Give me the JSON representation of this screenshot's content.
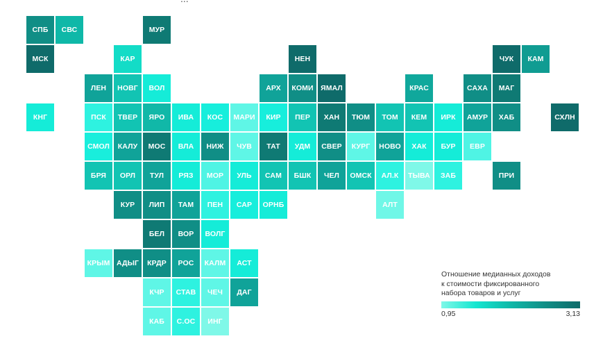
{
  "map": {
    "title_fragment": "...",
    "legend": {
      "title_line1": "Отношение медианных доходов",
      "title_line2": "к стоимости фиксированного",
      "title_line3": "набора товаров и услуг",
      "min_label": "0,95",
      "max_label": "3,13",
      "color_min": "#7ff8e8",
      "color_max": "#0f6b6a"
    },
    "regions": [
      {
        "label": "СПБ",
        "col": 0,
        "row": 0,
        "color": "#108e86"
      },
      {
        "label": "СВС",
        "col": 1,
        "row": 0,
        "color": "#0fb8a8"
      },
      {
        "label": "МУР",
        "col": 4,
        "row": 0,
        "color": "#0f7a74"
      },
      {
        "label": "МСК",
        "col": 0,
        "row": 1,
        "color": "#0f6b6a"
      },
      {
        "label": "КАР",
        "col": 3,
        "row": 1,
        "color": "#13dcc7"
      },
      {
        "label": "НЕН",
        "col": 9,
        "row": 1,
        "color": "#0f6b6a"
      },
      {
        "label": "ЧУК",
        "col": 16,
        "row": 1,
        "color": "#0f6b6a"
      },
      {
        "label": "КАМ",
        "col": 17,
        "row": 1,
        "color": "#109c92"
      },
      {
        "label": "ЛЕН",
        "col": 2,
        "row": 2,
        "color": "#10a399"
      },
      {
        "label": "НОВГ",
        "col": 3,
        "row": 2,
        "color": "#12c4b3"
      },
      {
        "label": "ВОЛ",
        "col": 4,
        "row": 2,
        "color": "#15ecd8"
      },
      {
        "label": "АРХ",
        "col": 8,
        "row": 2,
        "color": "#10a399"
      },
      {
        "label": "КОМИ",
        "col": 9,
        "row": 2,
        "color": "#108e86"
      },
      {
        "label": "ЯМАЛ",
        "col": 10,
        "row": 2,
        "color": "#0f6b6a"
      },
      {
        "label": "КРАС",
        "col": 13,
        "row": 2,
        "color": "#10a89c"
      },
      {
        "label": "САХА",
        "col": 15,
        "row": 2,
        "color": "#108e86"
      },
      {
        "label": "МАГ",
        "col": 16,
        "row": 2,
        "color": "#0f7a74"
      },
      {
        "label": "КНГ",
        "col": 0,
        "row": 3,
        "color": "#15ecd8"
      },
      {
        "label": "ПСК",
        "col": 2,
        "row": 3,
        "color": "#2ef2e0"
      },
      {
        "label": "ТВЕР",
        "col": 3,
        "row": 3,
        "color": "#12c4b3"
      },
      {
        "label": "ЯРО",
        "col": 4,
        "row": 3,
        "color": "#11b8a8"
      },
      {
        "label": "ИВА",
        "col": 5,
        "row": 3,
        "color": "#15ecd8"
      },
      {
        "label": "КОС",
        "col": 6,
        "row": 3,
        "color": "#17eedc"
      },
      {
        "label": "МАРИ",
        "col": 7,
        "row": 3,
        "color": "#5ff6e6"
      },
      {
        "label": "КИР",
        "col": 8,
        "row": 3,
        "color": "#17eedc"
      },
      {
        "label": "ПЕР",
        "col": 9,
        "row": 3,
        "color": "#12c4b3"
      },
      {
        "label": "ХАН",
        "col": 10,
        "row": 3,
        "color": "#0f7a74"
      },
      {
        "label": "ТЮМ",
        "col": 11,
        "row": 3,
        "color": "#108e86"
      },
      {
        "label": "ТОМ",
        "col": 12,
        "row": 3,
        "color": "#12c4b3"
      },
      {
        "label": "КЕМ",
        "col": 13,
        "row": 3,
        "color": "#12c4b3"
      },
      {
        "label": "ИРК",
        "col": 14,
        "row": 3,
        "color": "#15ecd8"
      },
      {
        "label": "АМУР",
        "col": 15,
        "row": 3,
        "color": "#10a399"
      },
      {
        "label": "ХАБ",
        "col": 16,
        "row": 3,
        "color": "#108e86"
      },
      {
        "label": "СХЛН",
        "col": 18,
        "row": 3,
        "color": "#0f6b6a"
      },
      {
        "label": "СМОЛ",
        "col": 2,
        "row": 4,
        "color": "#19eedc"
      },
      {
        "label": "КАЛУ",
        "col": 3,
        "row": 4,
        "color": "#10a399"
      },
      {
        "label": "МОС",
        "col": 4,
        "row": 4,
        "color": "#0f7a74"
      },
      {
        "label": "ВЛА",
        "col": 5,
        "row": 4,
        "color": "#15ecd8"
      },
      {
        "label": "НИЖ",
        "col": 6,
        "row": 4,
        "color": "#108e86"
      },
      {
        "label": "ЧУВ",
        "col": 7,
        "row": 4,
        "color": "#5ff6e6"
      },
      {
        "label": "ТАТ",
        "col": 8,
        "row": 4,
        "color": "#0f7a74"
      },
      {
        "label": "УДМ",
        "col": 9,
        "row": 4,
        "color": "#15ecd8"
      },
      {
        "label": "СВЕР",
        "col": 10,
        "row": 4,
        "color": "#108e86"
      },
      {
        "label": "КУРГ",
        "col": 11,
        "row": 4,
        "color": "#5ff6e6"
      },
      {
        "label": "НОВО",
        "col": 12,
        "row": 4,
        "color": "#10a399"
      },
      {
        "label": "ХАК",
        "col": 13,
        "row": 4,
        "color": "#15ecd8"
      },
      {
        "label": "БУР",
        "col": 14,
        "row": 4,
        "color": "#15ecd8"
      },
      {
        "label": "ЕВР",
        "col": 15,
        "row": 4,
        "color": "#4ff4e4"
      },
      {
        "label": "БРЯ",
        "col": 2,
        "row": 5,
        "color": "#12c4b3"
      },
      {
        "label": "ОРЛ",
        "col": 3,
        "row": 5,
        "color": "#12c4b3"
      },
      {
        "label": "ТУЛ",
        "col": 4,
        "row": 5,
        "color": "#10a399"
      },
      {
        "label": "РЯЗ",
        "col": 5,
        "row": 5,
        "color": "#15ecd8"
      },
      {
        "label": "МОР",
        "col": 6,
        "row": 5,
        "color": "#4ff4e4"
      },
      {
        "label": "УЛЬ",
        "col": 7,
        "row": 5,
        "color": "#15ecd8"
      },
      {
        "label": "САМ",
        "col": 8,
        "row": 5,
        "color": "#12c4b3"
      },
      {
        "label": "БШК",
        "col": 9,
        "row": 5,
        "color": "#12c4b3"
      },
      {
        "label": "ЧЕЛ",
        "col": 10,
        "row": 5,
        "color": "#10a399"
      },
      {
        "label": "ОМСК",
        "col": 11,
        "row": 5,
        "color": "#12c4b3"
      },
      {
        "label": "АЛ.К",
        "col": 12,
        "row": 5,
        "color": "#2ef2e0"
      },
      {
        "label": "ТЫВА",
        "col": 13,
        "row": 5,
        "color": "#7ff8e8"
      },
      {
        "label": "ЗАБ",
        "col": 14,
        "row": 5,
        "color": "#2ef2e0"
      },
      {
        "label": "ПРИ",
        "col": 16,
        "row": 5,
        "color": "#108e86"
      },
      {
        "label": "КУР",
        "col": 3,
        "row": 6,
        "color": "#108e86"
      },
      {
        "label": "ЛИП",
        "col": 4,
        "row": 6,
        "color": "#108e86"
      },
      {
        "label": "ТАМ",
        "col": 5,
        "row": 6,
        "color": "#10a399"
      },
      {
        "label": "ПЕН",
        "col": 6,
        "row": 6,
        "color": "#2ef2e0"
      },
      {
        "label": "САР",
        "col": 7,
        "row": 6,
        "color": "#17eedc"
      },
      {
        "label": "ОРНБ",
        "col": 8,
        "row": 6,
        "color": "#15ecd8"
      },
      {
        "label": "АЛТ",
        "col": 12,
        "row": 6,
        "color": "#6ff7e7"
      },
      {
        "label": "БЕЛ",
        "col": 4,
        "row": 7,
        "color": "#0f7a74"
      },
      {
        "label": "ВОР",
        "col": 5,
        "row": 7,
        "color": "#108e86"
      },
      {
        "label": "ВОЛГ",
        "col": 6,
        "row": 7,
        "color": "#15ecd8"
      },
      {
        "label": "КРЫМ",
        "col": 2,
        "row": 8,
        "color": "#5ff6e6"
      },
      {
        "label": "АДЫГ",
        "col": 3,
        "row": 8,
        "color": "#108e86"
      },
      {
        "label": "КРДР",
        "col": 4,
        "row": 8,
        "color": "#108e86"
      },
      {
        "label": "РОС",
        "col": 5,
        "row": 8,
        "color": "#10a399"
      },
      {
        "label": "КАЛМ",
        "col": 6,
        "row": 8,
        "color": "#5ff6e6"
      },
      {
        "label": "АСТ",
        "col": 7,
        "row": 8,
        "color": "#15ecd8"
      },
      {
        "label": "КЧР",
        "col": 4,
        "row": 9,
        "color": "#5ff6e6"
      },
      {
        "label": "СТАВ",
        "col": 5,
        "row": 9,
        "color": "#2ef2e0"
      },
      {
        "label": "ЧЕЧ",
        "col": 6,
        "row": 9,
        "color": "#5ff6e6"
      },
      {
        "label": "ДАГ",
        "col": 7,
        "row": 9,
        "color": "#10a399"
      },
      {
        "label": "КАБ",
        "col": 4,
        "row": 10,
        "color": "#5ff6e6"
      },
      {
        "label": "С.ОС",
        "col": 5,
        "row": 10,
        "color": "#2ef2e0"
      },
      {
        "label": "ИНГ",
        "col": 6,
        "row": 10,
        "color": "#7ff8e8"
      }
    ]
  }
}
